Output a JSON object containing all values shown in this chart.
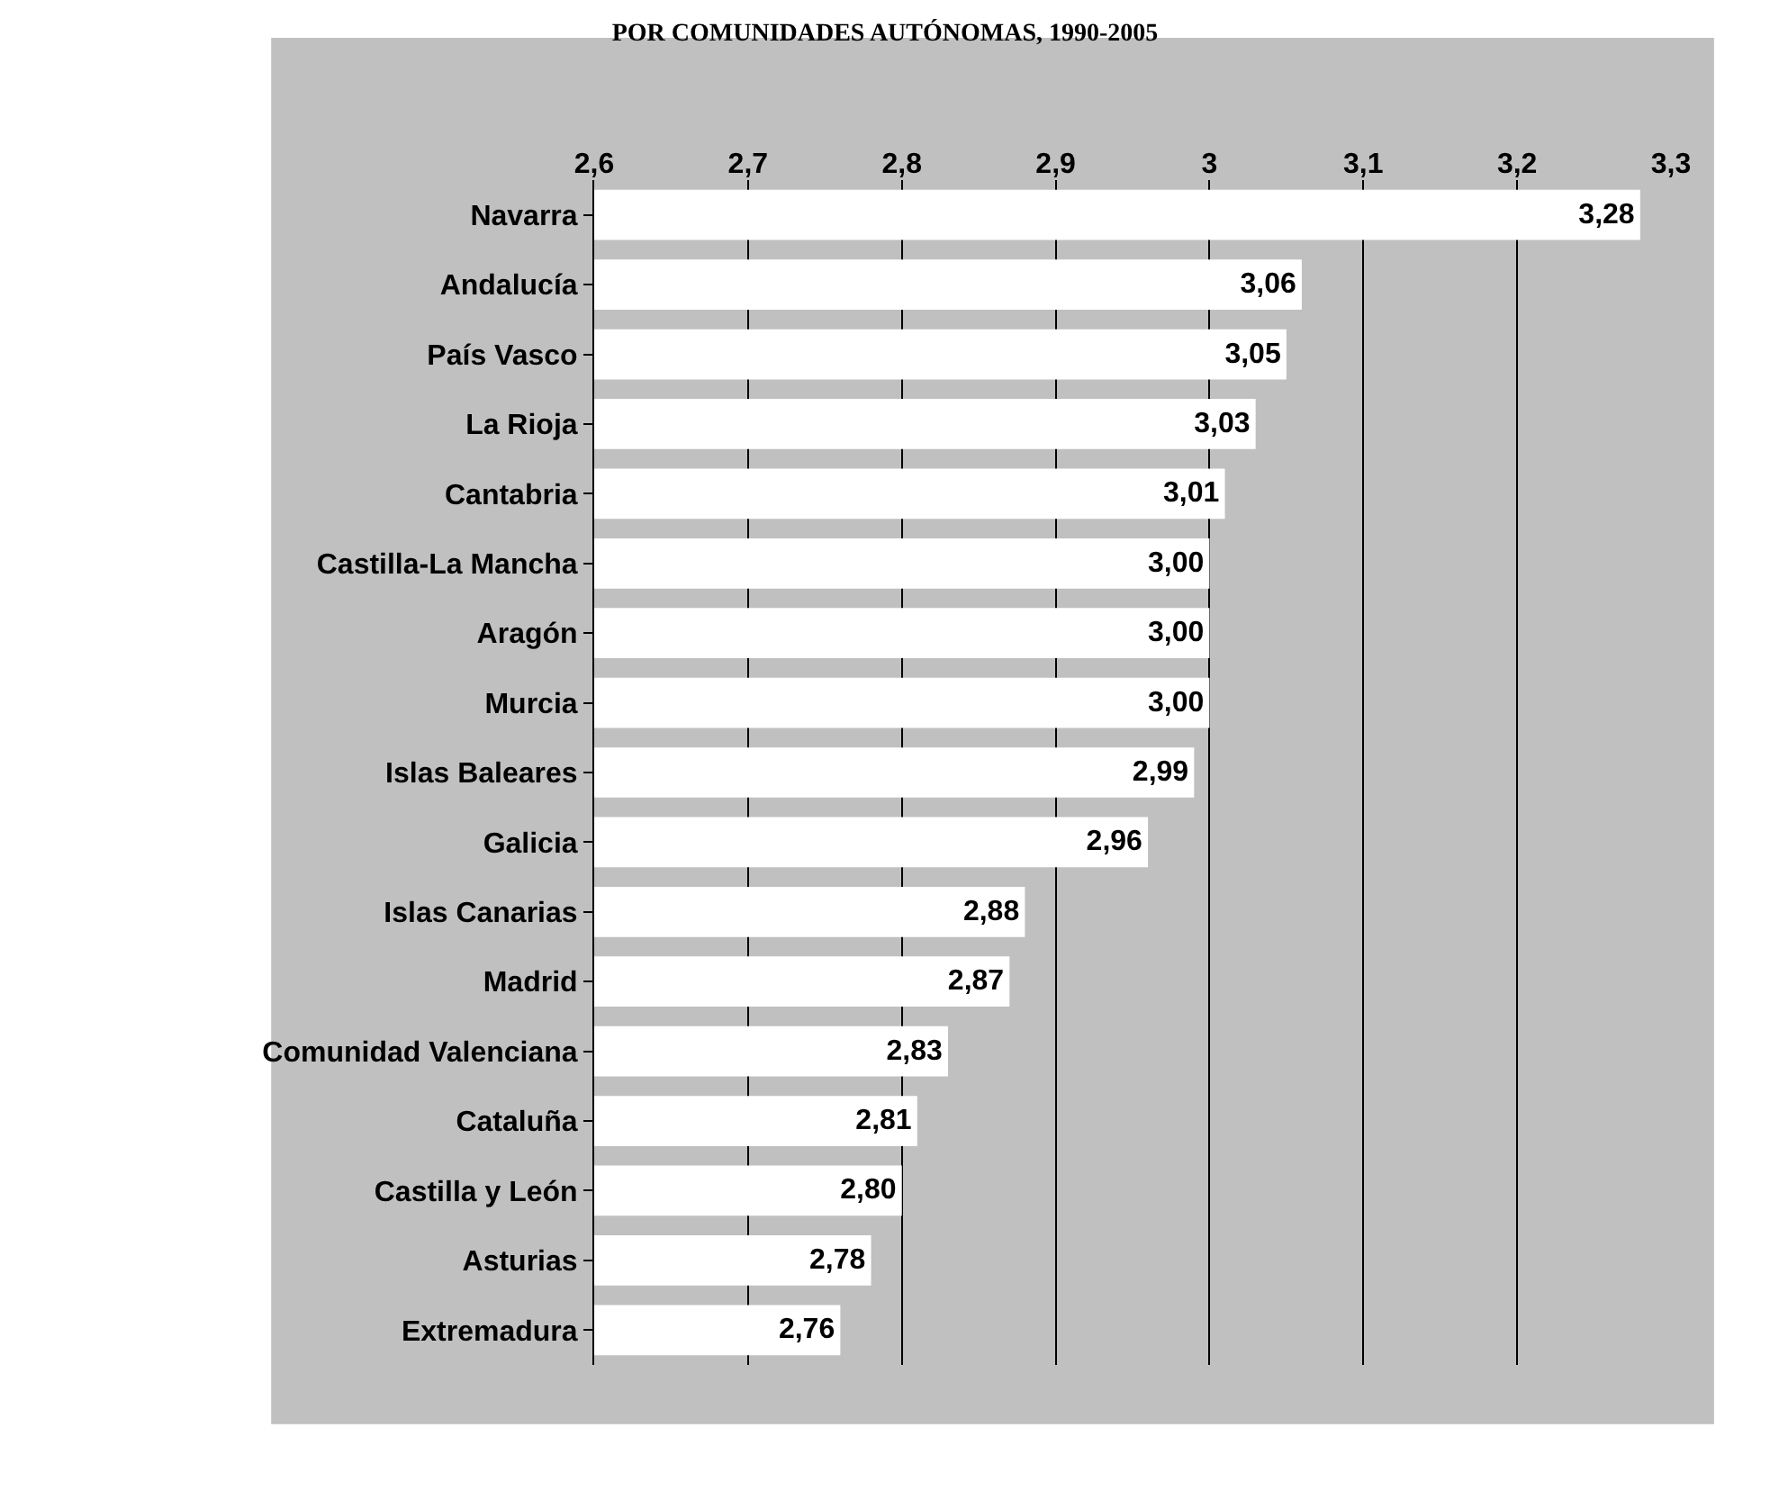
{
  "chart_data": {
    "type": "bar",
    "orientation": "horizontal",
    "title": "POR COMUNIDADES AUTÓNOMAS, 1990-2005",
    "categories": [
      "Navarra",
      "Andalucía",
      "País Vasco",
      "La Rioja",
      "Cantabria",
      "Castilla-La Mancha",
      "Aragón",
      "Murcia",
      "Islas Baleares",
      "Galicia",
      "Islas Canarias",
      "Madrid",
      "Comunidad Valenciana",
      "Cataluña",
      "Castilla y León",
      "Asturias",
      "Extremadura"
    ],
    "values": [
      3.28,
      3.06,
      3.05,
      3.03,
      3.01,
      3.0,
      3.0,
      3.0,
      2.99,
      2.96,
      2.88,
      2.87,
      2.83,
      2.81,
      2.8,
      2.78,
      2.76
    ],
    "value_labels": [
      "3,28",
      "3,06",
      "3,05",
      "3,03",
      "3,01",
      "3,00",
      "3,00",
      "3,00",
      "2,99",
      "2,96",
      "2,88",
      "2,87",
      "2,83",
      "2,81",
      "2,80",
      "2,78",
      "2,76"
    ],
    "color": "#ffffff",
    "xlim": [
      2.6,
      3.3
    ],
    "xticks": [
      {
        "value": 2.6,
        "label": "2,6"
      },
      {
        "value": 2.7,
        "label": "2,7"
      },
      {
        "value": 2.8,
        "label": "2,8"
      },
      {
        "value": 2.9,
        "label": "2,9"
      },
      {
        "value": 3,
        "label": "3"
      },
      {
        "value": 3.1,
        "label": "3,1"
      },
      {
        "value": 3.2,
        "label": "3,2"
      },
      {
        "value": 3.3,
        "label": "3,3"
      }
    ],
    "grid": "x",
    "legend": false
  }
}
